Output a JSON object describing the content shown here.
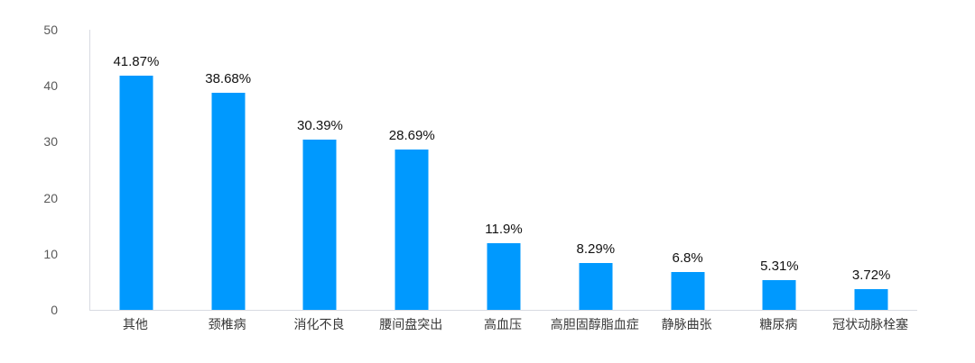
{
  "chart": {
    "bar_color": "#0099fe",
    "axis_line_color": "#d8dbe2",
    "tick_label_color": "#595959",
    "category_label_color": "#383838",
    "value_label_color": "#111111",
    "background_color": "#ffffff"
  },
  "chart_data": {
    "type": "bar",
    "title": "",
    "xlabel": "",
    "ylabel": "",
    "categories": [
      "其他",
      "颈椎病",
      "消化不良",
      "腰间盘突出",
      "高血压",
      "高胆固醇脂血症",
      "静脉曲张",
      "糖尿病",
      "冠状动脉栓塞"
    ],
    "values": [
      41.87,
      38.68,
      30.39,
      28.69,
      11.9,
      8.29,
      6.8,
      5.31,
      3.72
    ],
    "value_labels": [
      "41.87%",
      "38.68%",
      "30.39%",
      "28.69%",
      "11.9%",
      "8.29%",
      "6.8%",
      "5.31%",
      "3.72%"
    ],
    "ylim": [
      0,
      50
    ],
    "yticks": [
      0,
      10,
      20,
      30,
      40,
      50
    ],
    "grid": false,
    "legend_position": "none"
  }
}
